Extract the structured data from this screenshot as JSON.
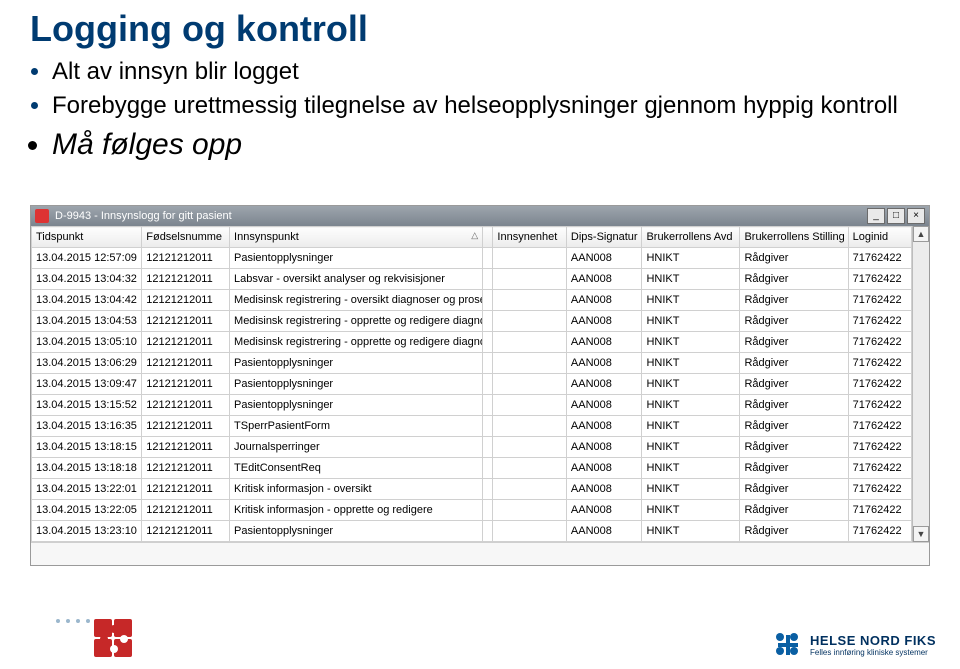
{
  "title": "Logging og kontroll",
  "bullets": {
    "b1": "Alt av innsyn blir logget",
    "b2": "Forebygge urettmessig tilegnelse av helseopplysninger gjennom hyppig kontroll",
    "b3": "Må følges opp"
  },
  "window": {
    "title": "D-9943 - Innsynslogg for gitt pasient",
    "minimize": "_",
    "maximize": "□",
    "close": "×",
    "columns": [
      "Tidspunkt",
      "Fødselsnumme",
      "Innsynspunkt",
      "",
      "Innsynenhet",
      "Dips-Signatur",
      "Brukerrollens Avd",
      "Brukerrollens Stilling",
      "Loginid"
    ],
    "sort_col_index": 2,
    "rows": [
      [
        "13.04.2015 12:57:09",
        "12121212011",
        "Pasientopplysninger",
        "",
        "",
        "AAN008",
        "HNIKT",
        "Rådgiver",
        "71762422"
      ],
      [
        "13.04.2015 13:04:32",
        "12121212011",
        "Labsvar - oversikt analyser og rekvisisjoner",
        "",
        "",
        "AAN008",
        "HNIKT",
        "Rådgiver",
        "71762422"
      ],
      [
        "13.04.2015 13:04:42",
        "12121212011",
        "Medisinsk registrering - oversikt diagnoser og prosedyrer",
        "",
        "",
        "AAN008",
        "HNIKT",
        "Rådgiver",
        "71762422"
      ],
      [
        "13.04.2015 13:04:53",
        "12121212011",
        "Medisinsk registrering - opprette og redigere diagnose",
        "",
        "",
        "AAN008",
        "HNIKT",
        "Rådgiver",
        "71762422"
      ],
      [
        "13.04.2015 13:05:10",
        "12121212011",
        "Medisinsk registrering - opprette og redigere diagnose",
        "",
        "",
        "AAN008",
        "HNIKT",
        "Rådgiver",
        "71762422"
      ],
      [
        "13.04.2015 13:06:29",
        "12121212011",
        "Pasientopplysninger",
        "",
        "",
        "AAN008",
        "HNIKT",
        "Rådgiver",
        "71762422"
      ],
      [
        "13.04.2015 13:09:47",
        "12121212011",
        "Pasientopplysninger",
        "",
        "",
        "AAN008",
        "HNIKT",
        "Rådgiver",
        "71762422"
      ],
      [
        "13.04.2015 13:15:52",
        "12121212011",
        "Pasientopplysninger",
        "",
        "",
        "AAN008",
        "HNIKT",
        "Rådgiver",
        "71762422"
      ],
      [
        "13.04.2015 13:16:35",
        "12121212011",
        "TSperrPasientForm",
        "",
        "",
        "AAN008",
        "HNIKT",
        "Rådgiver",
        "71762422"
      ],
      [
        "13.04.2015 13:18:15",
        "12121212011",
        "Journalsperringer",
        "",
        "",
        "AAN008",
        "HNIKT",
        "Rådgiver",
        "71762422"
      ],
      [
        "13.04.2015 13:18:18",
        "12121212011",
        "TEditConsentReq",
        "",
        "",
        "AAN008",
        "HNIKT",
        "Rådgiver",
        "71762422"
      ],
      [
        "13.04.2015 13:22:01",
        "12121212011",
        "Kritisk informasjon - oversikt",
        "",
        "",
        "AAN008",
        "HNIKT",
        "Rådgiver",
        "71762422"
      ],
      [
        "13.04.2015 13:22:05",
        "12121212011",
        "Kritisk informasjon - opprette og redigere",
        "",
        "",
        "AAN008",
        "HNIKT",
        "Rådgiver",
        "71762422"
      ],
      [
        "13.04.2015 13:23:10",
        "12121212011",
        "Pasientopplysninger",
        "",
        "",
        "AAN008",
        "HNIKT",
        "Rådgiver",
        "71762422"
      ]
    ]
  },
  "brand": {
    "line1": "HELSE NORD FIKS",
    "line2": "Felles innføring kliniske systemer"
  },
  "colors": {
    "title": "#003b71",
    "brand": "#00305f",
    "titlebar_from": "#9da5ad",
    "titlebar_to": "#7c858f"
  }
}
